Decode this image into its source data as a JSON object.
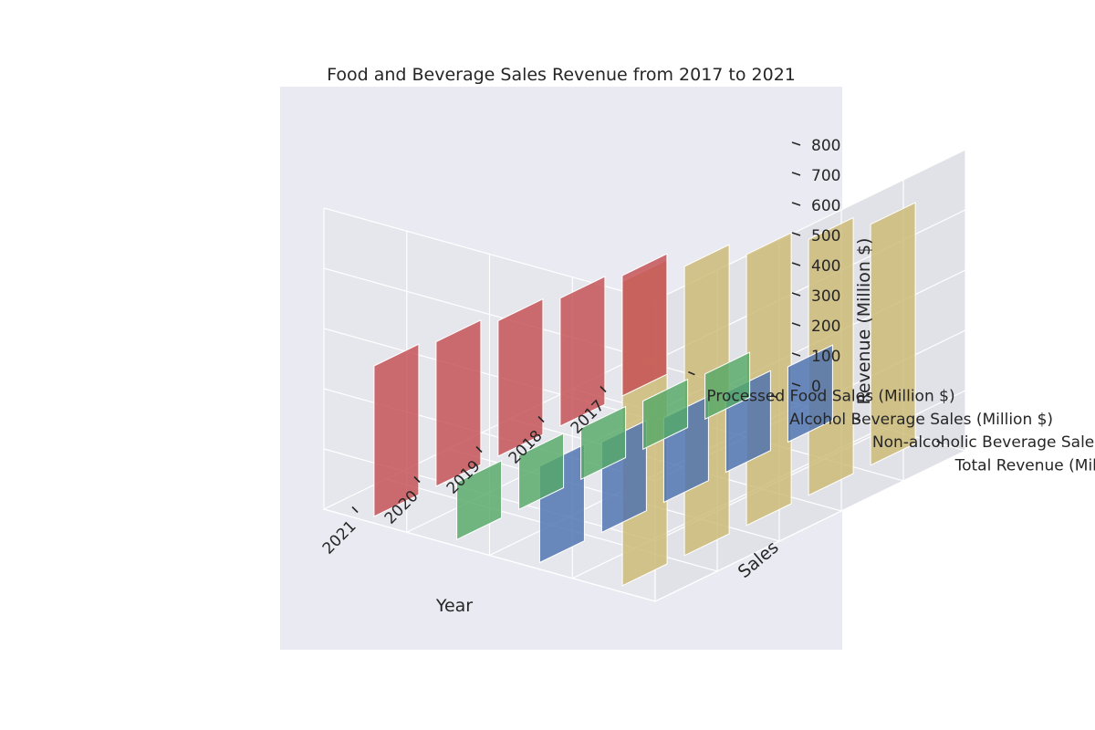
{
  "chart_data": {
    "type": "bar3d",
    "title": "Food and Beverage Sales Revenue from 2017 to 2021",
    "xlabel": "Year",
    "ylabel": "Sales",
    "zlabel": "Revenue (Million $)",
    "categories": [
      "2017",
      "2018",
      "2019",
      "2020",
      "2021"
    ],
    "series": [
      {
        "name": "Processed Food Sales (Million $)",
        "values": [
          400,
          425,
          450,
          480,
          500
        ],
        "color": "#c44e52"
      },
      {
        "name": "Alcohol Beverage Sales (Million $)",
        "values": [
          150,
          160,
          170,
          180,
          190
        ],
        "color": "#55a868"
      },
      {
        "name": "Non-alcoholic Beverage Sales (Million $)",
        "values": [
          250,
          265,
          280,
          300,
          320
        ],
        "color": "#4c72b0"
      },
      {
        "name": "Total Revenue (Million $)",
        "values": [
          800,
          850,
          900,
          960,
          1010
        ],
        "color": "#ccb974"
      }
    ],
    "zticks": [
      "0",
      "100",
      "200",
      "300",
      "400",
      "500",
      "600",
      "700",
      "800"
    ],
    "zlim": [
      0,
      1000
    ],
    "grid": true,
    "legend": "none"
  }
}
